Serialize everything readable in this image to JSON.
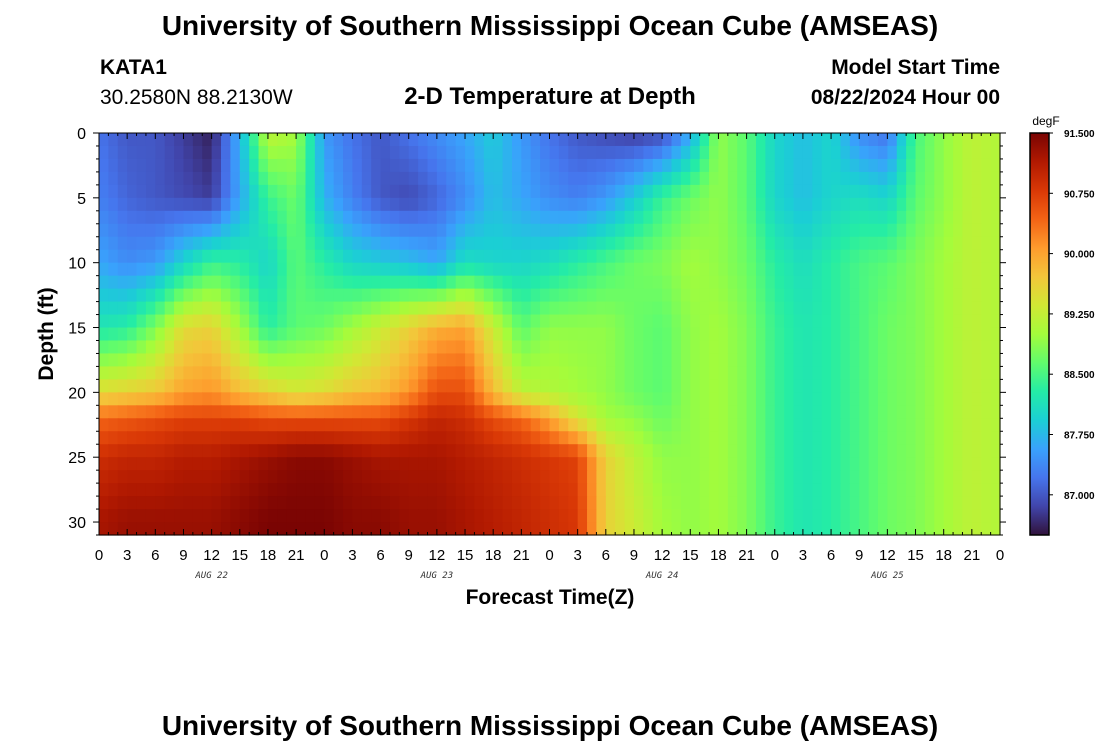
{
  "header": {
    "title": "University of Southern Mississippi Ocean Cube (AMSEAS)",
    "station": "KATA1",
    "coords": "30.2580N  88.2130W",
    "plot_title": "2-D Temperature at Depth",
    "start_label": "Model Start Time",
    "start_value": "08/22/2024 Hour 00"
  },
  "footer": {
    "title": "University of Southern Mississippi Ocean Cube (AMSEAS)"
  },
  "colors": {
    "scale": [
      "#30123b",
      "#4145ab",
      "#4675ed",
      "#39a2fc",
      "#1bcfd4",
      "#24eca6",
      "#61fc6c",
      "#a4fc3b",
      "#d1e834",
      "#f3c63a",
      "#fe9b2d",
      "#f36315",
      "#d93806",
      "#b11901",
      "#7a0403"
    ]
  },
  "chart_data": {
    "type": "heatmap",
    "xlabel": "Forecast Time(Z)",
    "ylabel": "Depth (ft)",
    "x_tick_labels": [
      "0",
      "3",
      "6",
      "9",
      "12",
      "15",
      "18",
      "21",
      "0",
      "3",
      "6",
      "9",
      "12",
      "15",
      "18",
      "21",
      "0",
      "3",
      "6",
      "9",
      "12",
      "15",
      "18",
      "21",
      "0",
      "3",
      "6",
      "9",
      "12",
      "15",
      "18",
      "21",
      "0"
    ],
    "x_hours_range": [
      0,
      96
    ],
    "date_labels": [
      "AUG 22",
      "AUG 23",
      "AUG 24",
      "AUG 25"
    ],
    "y_ticks": [
      0,
      5,
      10,
      15,
      20,
      25,
      30
    ],
    "ylim": [
      0,
      31
    ],
    "colorbar": {
      "unit": "degF",
      "range": [
        86.5,
        91.5
      ],
      "tick_labels": [
        "91.500",
        "90.750",
        "90.000",
        "89.250",
        "88.500",
        "87.750",
        "87.000"
      ],
      "tick_values": [
        91.5,
        90.75,
        90.0,
        89.25,
        88.5,
        87.75,
        87.0
      ]
    },
    "hours": [
      0,
      3,
      6,
      9,
      12,
      15,
      18,
      21,
      24,
      27,
      30,
      33,
      36,
      39,
      42,
      45,
      48,
      51,
      54,
      57,
      60,
      63,
      66,
      69,
      72,
      75,
      78,
      81,
      84,
      87,
      90,
      93,
      96
    ],
    "depths": [
      0,
      5,
      10,
      15,
      20,
      22,
      25,
      30
    ],
    "values": [
      [
        87.2,
        87.0,
        87.0,
        86.8,
        86.6,
        87.7,
        89.2,
        89.0,
        87.5,
        87.2,
        87.0,
        87.2,
        87.4,
        87.6,
        87.9,
        87.5,
        87.2,
        87.0,
        86.9,
        86.8,
        86.9,
        87.6,
        88.9,
        88.6,
        88.0,
        87.8,
        88.0,
        87.4,
        87.2,
        88.5,
        88.9,
        89.2,
        89.1
      ],
      [
        87.3,
        87.1,
        87.0,
        86.9,
        86.8,
        87.6,
        88.4,
        88.7,
        87.7,
        87.3,
        87.0,
        86.9,
        87.1,
        87.4,
        87.8,
        87.6,
        87.4,
        87.3,
        87.5,
        87.9,
        88.4,
        88.7,
        88.9,
        88.6,
        88.0,
        87.8,
        88.0,
        88.1,
        88.0,
        88.6,
        88.9,
        89.2,
        89.1
      ],
      [
        87.6,
        87.4,
        87.5,
        88.0,
        88.4,
        88.3,
        88.0,
        88.6,
        88.3,
        88.0,
        87.9,
        87.8,
        87.6,
        88.1,
        88.0,
        88.0,
        88.1,
        88.3,
        88.5,
        88.7,
        88.8,
        89.0,
        88.9,
        88.7,
        88.3,
        88.1,
        88.3,
        88.5,
        88.6,
        88.8,
        89.0,
        89.2,
        89.1
      ],
      [
        88.2,
        88.3,
        88.8,
        89.5,
        89.6,
        89.0,
        88.3,
        88.6,
        88.7,
        89.0,
        89.3,
        89.6,
        89.9,
        90.0,
        89.3,
        88.6,
        88.9,
        88.9,
        88.9,
        88.7,
        88.6,
        88.9,
        89.0,
        88.8,
        88.4,
        88.2,
        88.3,
        88.5,
        88.7,
        88.8,
        89.0,
        89.2,
        89.1
      ],
      [
        89.5,
        89.6,
        89.7,
        90.0,
        90.1,
        89.8,
        89.6,
        89.4,
        89.5,
        89.7,
        89.8,
        90.1,
        90.6,
        90.6,
        89.8,
        89.2,
        89.1,
        89.0,
        88.9,
        88.7,
        88.6,
        88.9,
        89.0,
        88.8,
        88.4,
        88.2,
        88.3,
        88.5,
        88.7,
        88.8,
        89.0,
        89.2,
        89.1
      ],
      [
        90.4,
        90.5,
        90.6,
        90.7,
        90.7,
        90.7,
        90.6,
        90.6,
        90.6,
        90.6,
        90.6,
        90.8,
        91.0,
        90.9,
        90.6,
        90.4,
        90.0,
        89.4,
        89.0,
        88.9,
        88.7,
        88.9,
        89.0,
        88.8,
        88.4,
        88.2,
        88.3,
        88.5,
        88.7,
        88.8,
        89.0,
        89.2,
        89.1
      ],
      [
        90.9,
        91.0,
        91.0,
        91.1,
        91.1,
        91.2,
        91.3,
        91.4,
        91.4,
        91.3,
        91.2,
        91.2,
        91.2,
        91.1,
        91.0,
        90.9,
        90.8,
        90.7,
        89.6,
        89.2,
        88.9,
        88.9,
        89.0,
        88.8,
        88.4,
        88.2,
        88.3,
        88.5,
        88.7,
        88.8,
        89.0,
        89.2,
        89.1
      ],
      [
        91.2,
        91.3,
        91.3,
        91.3,
        91.3,
        91.4,
        91.5,
        91.5,
        91.5,
        91.4,
        91.4,
        91.3,
        91.3,
        91.2,
        91.1,
        91.0,
        90.9,
        90.8,
        89.6,
        89.3,
        89.0,
        88.9,
        89.0,
        88.8,
        88.4,
        88.2,
        88.3,
        88.5,
        88.7,
        88.8,
        89.0,
        89.2,
        89.1
      ]
    ]
  }
}
